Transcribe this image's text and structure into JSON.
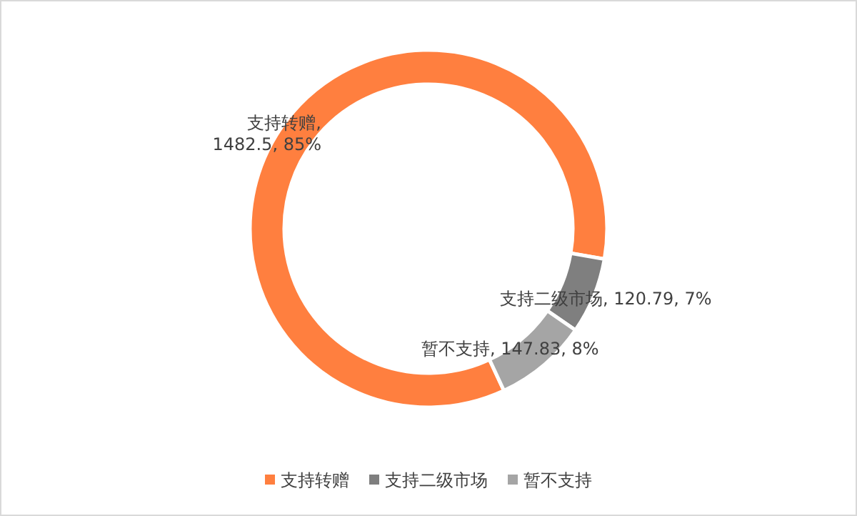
{
  "chart_data": {
    "type": "donut",
    "categories": [
      "支持转赠",
      "支持二级市场",
      "暂不支持"
    ],
    "values": [
      1482.5,
      120.79,
      147.83
    ],
    "colors": [
      "#ff7f3f",
      "#7f7f7f",
      "#a5a5a5"
    ],
    "value_labels": [
      "支持转赠, 1482.5, 85%",
      "支持二级市场, 120.79, 7%",
      "暂不支持, 147.83, 8%"
    ],
    "legend": "bottom"
  }
}
